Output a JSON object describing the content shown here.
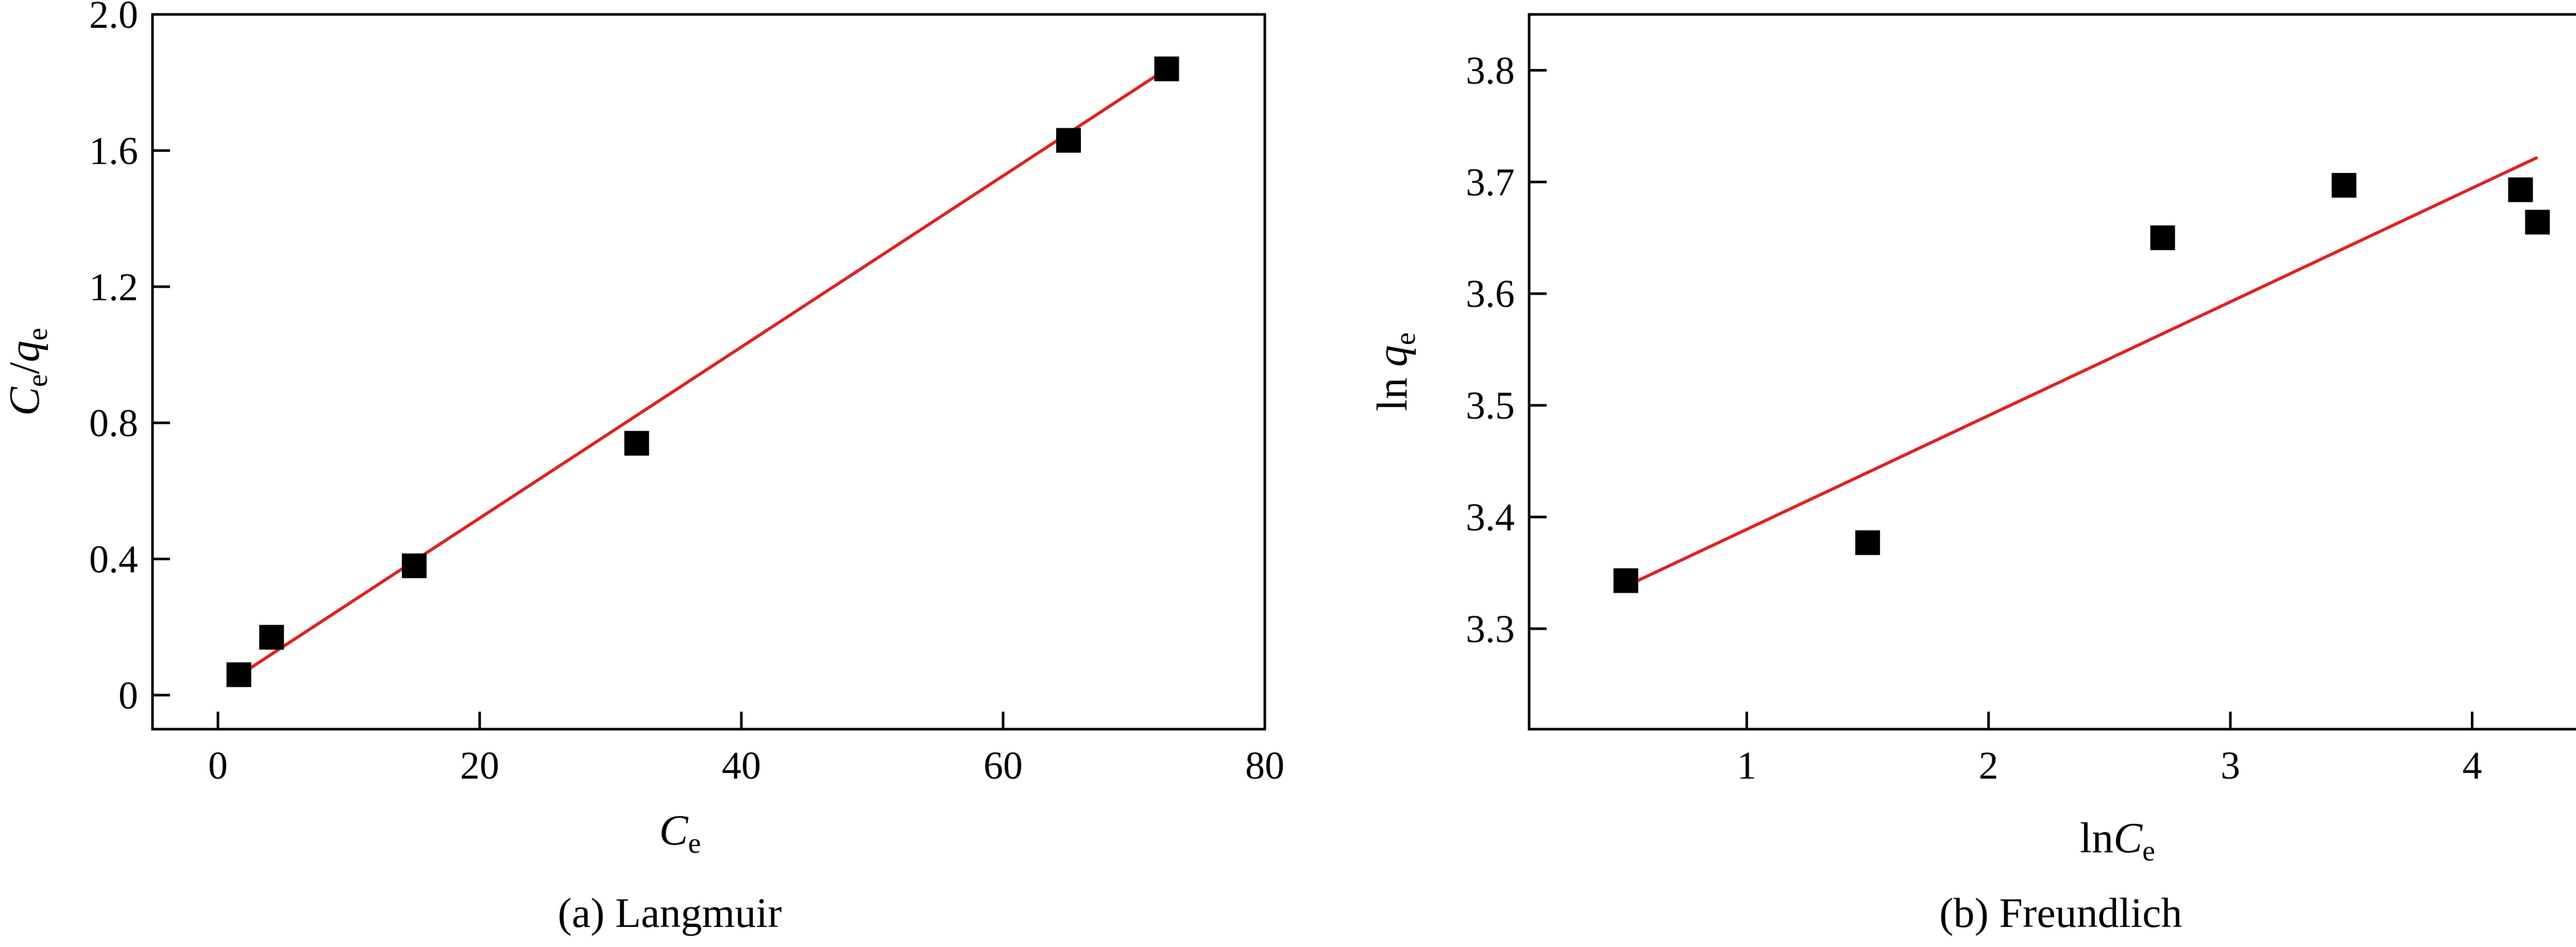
{
  "colors": {
    "fit_line": "#e02020",
    "marker": "#000000"
  },
  "chart_data": [
    {
      "type": "scatter",
      "caption": "(a)  Langmuir",
      "xlabel": {
        "main": "C",
        "sub": "e",
        "text": "Ce"
      },
      "ylabel": {
        "main1": "C",
        "sub1": "e",
        "slash": "/",
        "main2": "q",
        "sub2": "e",
        "text": "Ce/qe"
      },
      "xlim": [
        -5,
        80
      ],
      "ylim": [
        -0.1,
        2.0
      ],
      "xticks": [
        0,
        20,
        40,
        60,
        80
      ],
      "xtick_labels": [
        "0",
        "20",
        "40",
        "60",
        "80"
      ],
      "yticks": [
        0,
        0.4,
        0.8,
        1.2,
        1.6,
        2.0
      ],
      "ytick_labels": [
        "0",
        "0.4",
        "0.8",
        "1.2",
        "1.6",
        "2.0"
      ],
      "grid": false,
      "series": [
        {
          "kind": "points",
          "marker": "square",
          "x": [
            1.6,
            4.1,
            15.0,
            32.0,
            65.0,
            72.5
          ],
          "y": [
            0.06,
            0.17,
            0.38,
            0.74,
            1.63,
            1.84
          ]
        }
      ],
      "fit": {
        "x": [
          1.5,
          72.5
        ],
        "y": [
          0.055,
          1.84
        ]
      }
    },
    {
      "type": "scatter",
      "caption": "(b)  Freundlich",
      "xlabel": {
        "pre": "ln",
        "main": "C",
        "sub": "e",
        "text": "lnCe"
      },
      "ylabel": {
        "pre": "ln ",
        "main": "q",
        "sub": "e",
        "text": "ln qe"
      },
      "xlim": [
        0.1,
        4.7
      ],
      "ylim": [
        3.21,
        3.85
      ],
      "xticks": [
        1,
        2,
        3,
        4
      ],
      "xtick_labels": [
        "1",
        "2",
        "3",
        "4"
      ],
      "yticks": [
        3.3,
        3.4,
        3.5,
        3.6,
        3.7,
        3.8
      ],
      "ytick_labels": [
        "3.3",
        "3.4",
        "3.5",
        "3.6",
        "3.7",
        "3.8"
      ],
      "grid": false,
      "series": [
        {
          "kind": "points",
          "marker": "square",
          "x": [
            0.5,
            1.5,
            2.72,
            3.47,
            4.2,
            4.27
          ],
          "y": [
            3.343,
            3.377,
            3.65,
            3.697,
            3.693,
            3.664
          ]
        }
      ],
      "fit": {
        "x": [
          0.5,
          4.27
        ],
        "y": [
          3.338,
          3.722
        ]
      }
    }
  ]
}
